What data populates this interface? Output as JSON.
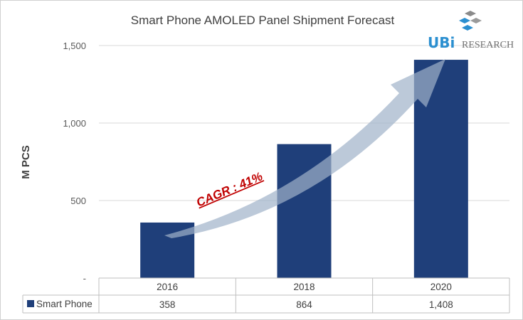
{
  "chart_data": {
    "type": "bar",
    "title": "Smart Phone AMOLED Panel Shipment Forecast",
    "ylabel": "M PCS",
    "xlabel": "",
    "categories": [
      "2016",
      "2018",
      "2020"
    ],
    "series": [
      {
        "name": "Smart Phone",
        "values": [
          358,
          864,
          1408
        ],
        "value_labels": [
          "358",
          "864",
          "1,408"
        ],
        "color": "#1f3f7a"
      }
    ],
    "ylim": [
      0,
      1500
    ],
    "yticks": [
      {
        "v": 0,
        "label": "-"
      },
      {
        "v": 500,
        "label": "500"
      },
      {
        "v": 1000,
        "label": "1,000"
      },
      {
        "v": 1500,
        "label": "1,500"
      }
    ],
    "grid": true,
    "legend": "data-table",
    "annotation": "CAGR : 41%",
    "annotation_color": "#c00000",
    "logo_text": "UBI RESEARCH"
  }
}
